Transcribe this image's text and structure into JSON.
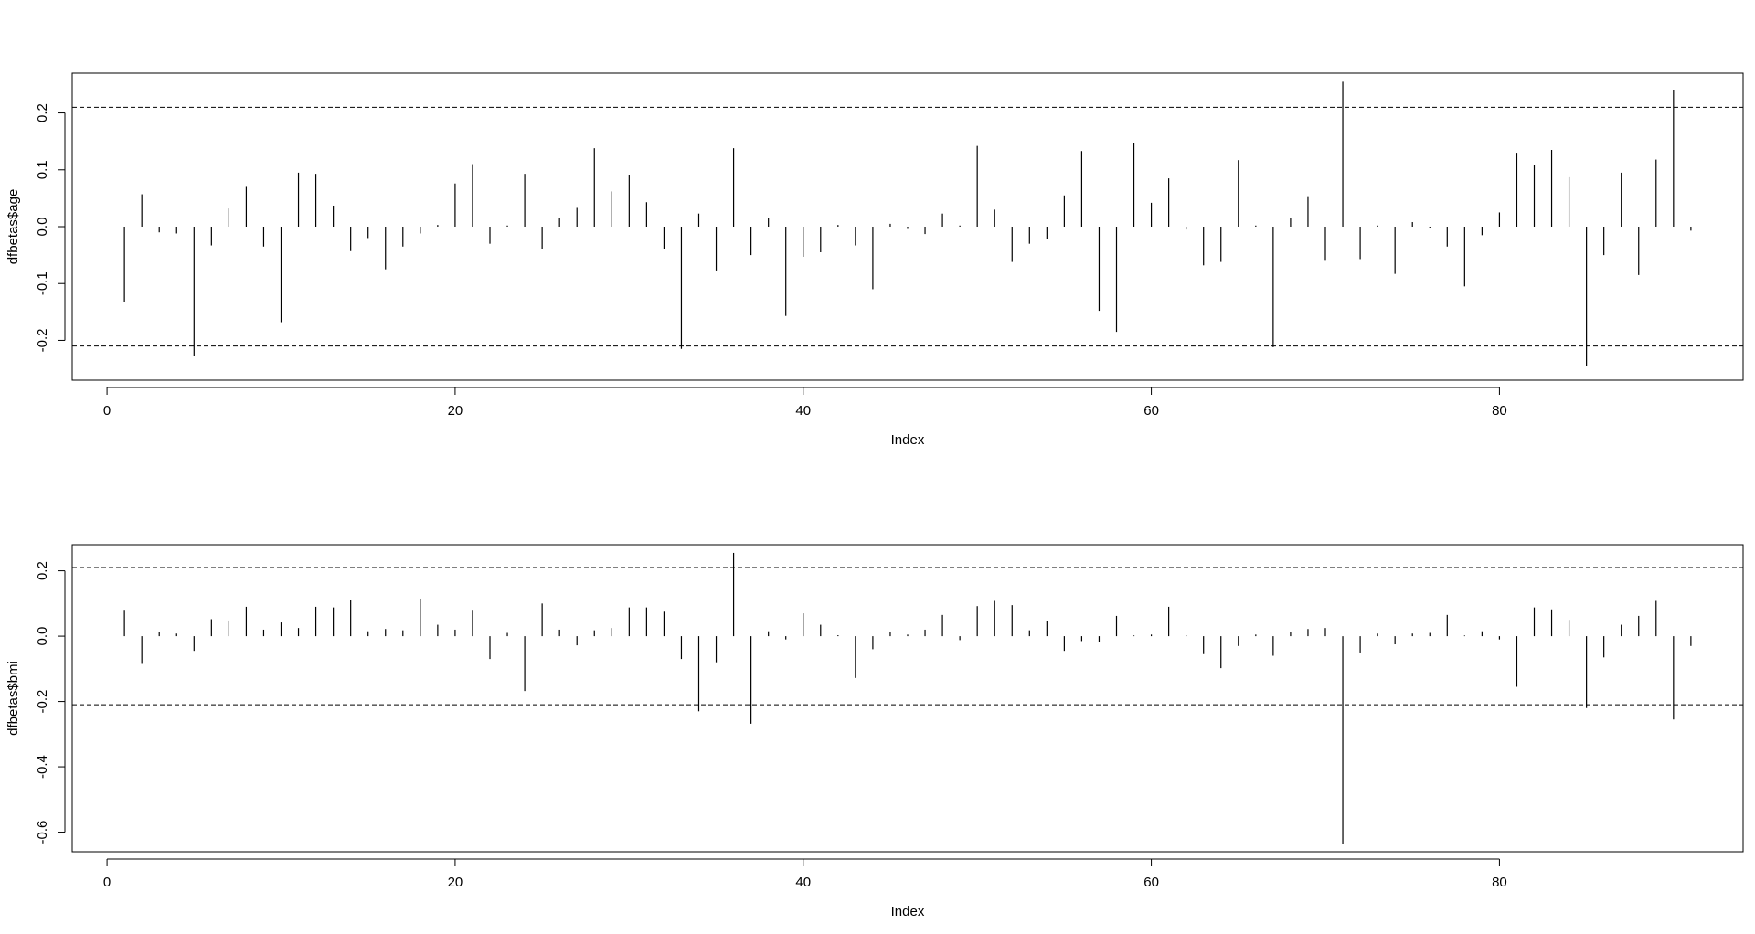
{
  "chart_data": [
    {
      "type": "bar",
      "style": "vertical spikes (type='h')",
      "ylabel": "dfbetas$age",
      "xlabel": "Index",
      "xlim": [
        -2,
        94
      ],
      "ylim": [
        -0.27,
        0.27
      ],
      "x_ticks": [
        0,
        20,
        40,
        60,
        80
      ],
      "x_tick_labels": [
        "0",
        "20",
        "40",
        "60",
        "80"
      ],
      "y_ticks": [
        -0.2,
        -0.1,
        0.0,
        0.1,
        0.2
      ],
      "y_tick_labels": [
        "-0.2",
        "-0.1",
        "0.0",
        "0.1",
        "0.2"
      ],
      "reference_lines": [
        0.21,
        -0.21
      ],
      "x": [
        1,
        2,
        3,
        4,
        5,
        6,
        7,
        8,
        9,
        10,
        11,
        12,
        13,
        14,
        15,
        16,
        17,
        18,
        19,
        20,
        21,
        22,
        23,
        24,
        25,
        26,
        27,
        28,
        29,
        30,
        31,
        32,
        33,
        34,
        35,
        36,
        37,
        38,
        39,
        40,
        41,
        42,
        43,
        44,
        45,
        46,
        47,
        48,
        49,
        50,
        51,
        52,
        53,
        54,
        55,
        56,
        57,
        58,
        59,
        60,
        61,
        62,
        63,
        64,
        65,
        66,
        67,
        68,
        69,
        70,
        71,
        72,
        73,
        74,
        75,
        76,
        77,
        78,
        79,
        80,
        81,
        82,
        83,
        84,
        85,
        86,
        87,
        88,
        89,
        90,
        91
      ],
      "values": [
        -0.132,
        0.057,
        -0.01,
        -0.012,
        -0.228,
        -0.033,
        0.032,
        0.07,
        -0.035,
        -0.168,
        0.095,
        0.093,
        0.037,
        -0.043,
        -0.02,
        -0.075,
        -0.035,
        -0.012,
        0.003,
        0.076,
        0.11,
        -0.03,
        0.002,
        0.093,
        -0.04,
        0.015,
        0.033,
        0.138,
        0.062,
        0.09,
        0.043,
        -0.04,
        -0.215,
        0.023,
        -0.077,
        0.138,
        -0.05,
        0.016,
        -0.157,
        -0.053,
        -0.045,
        0.003,
        -0.033,
        -0.11,
        0.005,
        -0.004,
        -0.013,
        0.023,
        0.002,
        0.142,
        0.03,
        -0.062,
        -0.03,
        -0.022,
        0.055,
        0.133,
        -0.148,
        -0.185,
        0.147,
        0.042,
        0.085,
        -0.005,
        -0.068,
        -0.062,
        0.117,
        0.002,
        -0.212,
        0.015,
        0.052,
        -0.06,
        0.255,
        -0.057,
        0.002,
        -0.083,
        0.008,
        -0.003,
        -0.035,
        -0.105,
        -0.015,
        0.025,
        0.13,
        0.108,
        0.135,
        0.087,
        -0.245,
        -0.05,
        0.095,
        -0.085,
        0.118,
        0.24,
        -0.007
      ]
    },
    {
      "type": "bar",
      "style": "vertical spikes (type='h')",
      "ylabel": "dfbetas$bmi",
      "xlabel": "Index",
      "xlim": [
        -2,
        94
      ],
      "ylim": [
        -0.66,
        0.28
      ],
      "x_ticks": [
        0,
        20,
        40,
        60,
        80
      ],
      "x_tick_labels": [
        "0",
        "20",
        "40",
        "60",
        "80"
      ],
      "y_ticks": [
        -0.6,
        -0.4,
        -0.2,
        0.0,
        0.2
      ],
      "y_tick_labels": [
        "-0.6",
        "-0.4",
        "-0.2",
        "0.0",
        "0.2"
      ],
      "reference_lines": [
        0.21,
        -0.21
      ],
      "x": [
        1,
        2,
        3,
        4,
        5,
        6,
        7,
        8,
        9,
        10,
        11,
        12,
        13,
        14,
        15,
        16,
        17,
        18,
        19,
        20,
        21,
        22,
        23,
        24,
        25,
        26,
        27,
        28,
        29,
        30,
        31,
        32,
        33,
        34,
        35,
        36,
        37,
        38,
        39,
        40,
        41,
        42,
        43,
        44,
        45,
        46,
        47,
        48,
        49,
        50,
        51,
        52,
        53,
        54,
        55,
        56,
        57,
        58,
        59,
        60,
        61,
        62,
        63,
        64,
        65,
        66,
        67,
        68,
        69,
        70,
        71,
        72,
        73,
        74,
        75,
        76,
        77,
        78,
        79,
        80,
        81,
        82,
        83,
        84,
        85,
        86,
        87,
        88,
        89,
        90,
        91
      ],
      "values": [
        0.078,
        -0.085,
        0.012,
        0.008,
        -0.045,
        0.052,
        0.048,
        0.09,
        0.02,
        0.042,
        0.025,
        0.09,
        0.088,
        0.11,
        0.015,
        0.022,
        0.018,
        0.115,
        0.035,
        0.02,
        0.078,
        -0.07,
        0.01,
        -0.168,
        0.1,
        0.02,
        -0.028,
        0.018,
        0.025,
        0.088,
        0.088,
        0.075,
        -0.07,
        -0.23,
        -0.08,
        0.255,
        -0.268,
        0.015,
        -0.01,
        0.07,
        0.035,
        0.003,
        -0.128,
        -0.04,
        0.012,
        0.005,
        0.02,
        0.065,
        -0.012,
        0.092,
        0.108,
        0.095,
        0.018,
        0.045,
        -0.045,
        -0.015,
        -0.018,
        0.062,
        0.002,
        0.005,
        0.09,
        0.003,
        -0.055,
        -0.098,
        -0.03,
        0.005,
        -0.06,
        0.012,
        0.022,
        0.025,
        -0.635,
        -0.05,
        0.008,
        -0.025,
        0.008,
        0.01,
        0.065,
        0.002,
        0.015,
        -0.01,
        -0.155,
        0.088,
        0.082,
        0.05,
        -0.22,
        -0.065,
        0.035,
        0.062,
        0.108,
        -0.255,
        -0.03
      ]
    }
  ]
}
